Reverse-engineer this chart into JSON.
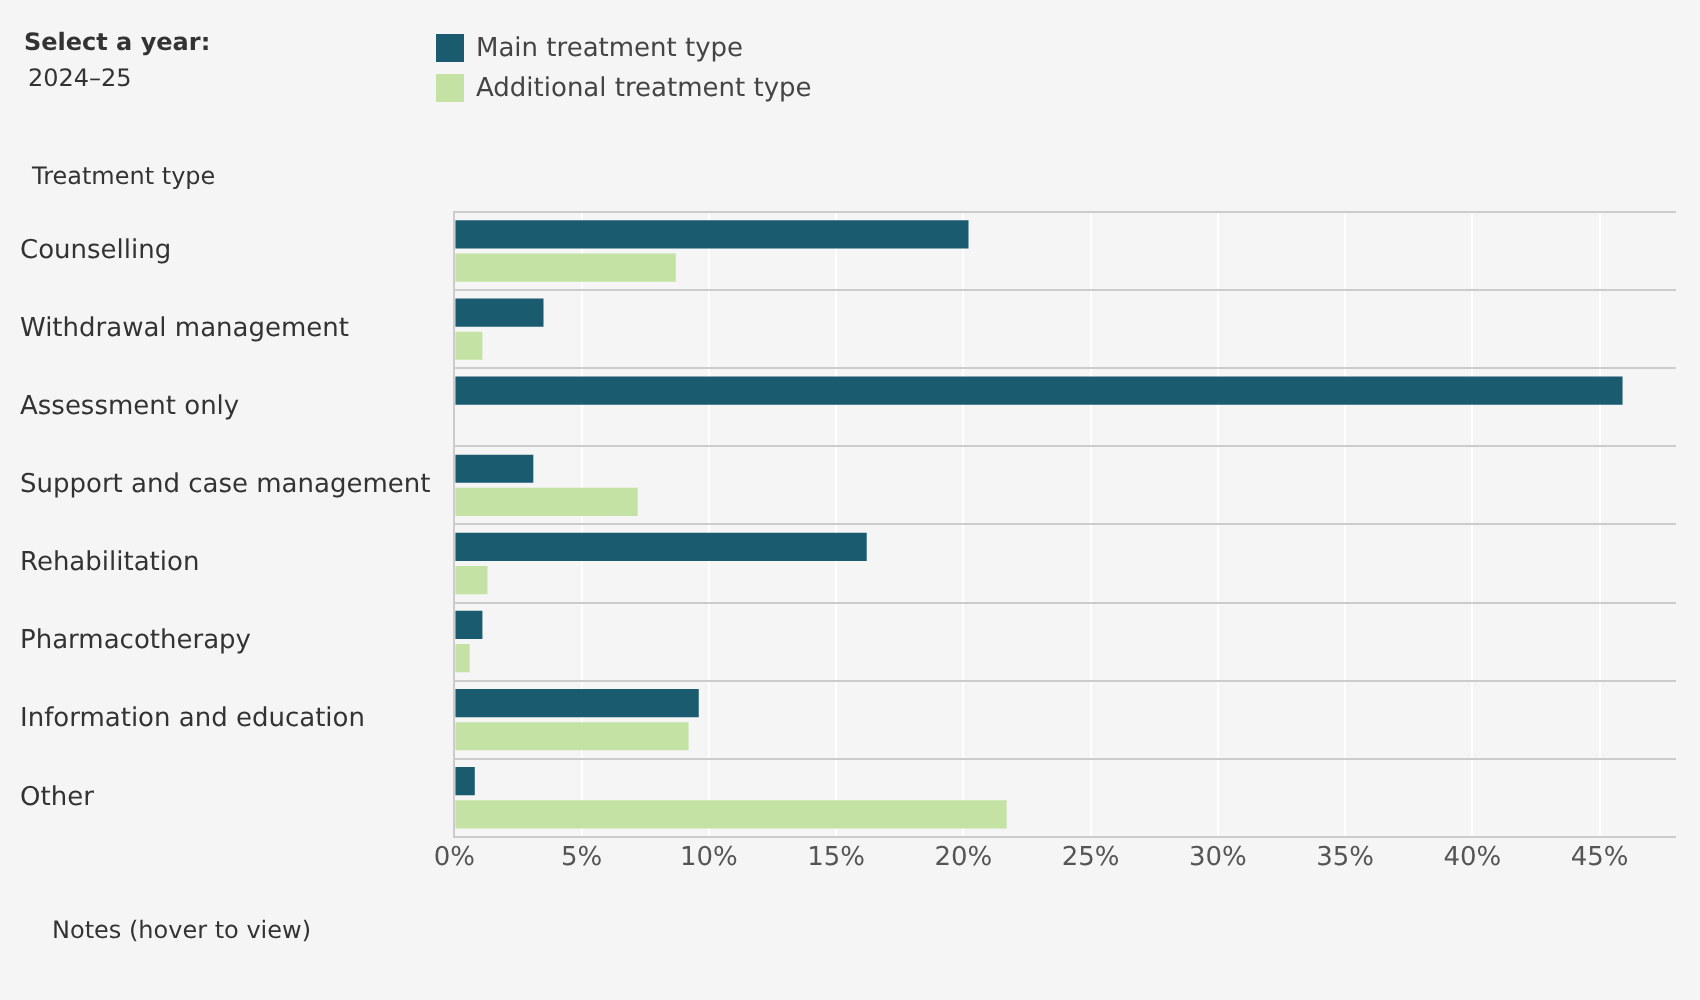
{
  "chart_data": {
    "type": "bar",
    "orientation": "horizontal",
    "ylabel": "Treatment type",
    "annotations": [
      "Select a year:",
      "2024–25",
      "Notes (hover to view)"
    ],
    "categories": [
      "Counselling",
      "Withdrawal management",
      "Assessment only",
      "Support and case management",
      "Rehabilitation",
      "Pharmacotherapy",
      "Information and education",
      "Other"
    ],
    "series": [
      {
        "name": "Main treatment type",
        "color": "#1a5b70",
        "values": [
          20.2,
          3.5,
          45.9,
          3.1,
          16.2,
          1.1,
          9.6,
          0.8
        ]
      },
      {
        "name": "Additional treatment type",
        "color": "#c3e2a3",
        "values": [
          8.7,
          1.1,
          null,
          7.2,
          1.3,
          0.6,
          9.2,
          21.7
        ]
      }
    ],
    "xlim": [
      0,
      48
    ],
    "xticks": [
      {
        "value": 0,
        "label": "0%"
      },
      {
        "value": 5,
        "label": "5%"
      },
      {
        "value": 10,
        "label": "10%"
      },
      {
        "value": 15,
        "label": "15%"
      },
      {
        "value": 20,
        "label": "20%"
      },
      {
        "value": 25,
        "label": "25%"
      },
      {
        "value": 30,
        "label": "30%"
      },
      {
        "value": 35,
        "label": "35%"
      },
      {
        "value": 40,
        "label": "40%"
      },
      {
        "value": 45,
        "label": "45%"
      }
    ],
    "grid": true,
    "legend": "top"
  }
}
